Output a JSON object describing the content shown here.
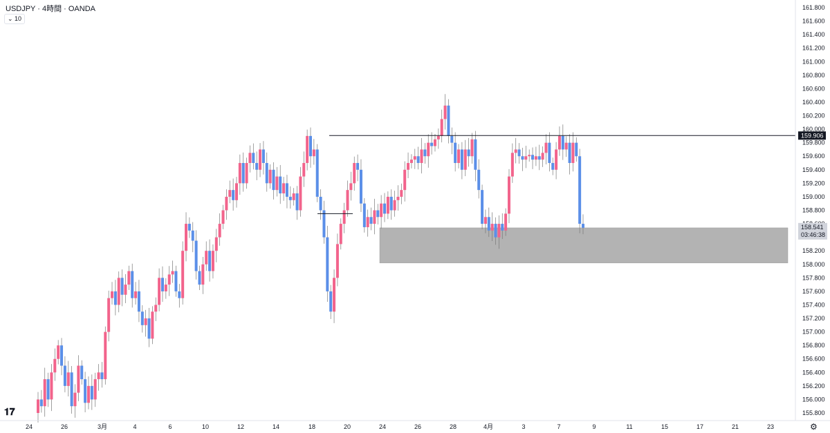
{
  "header": {
    "title": "USDJPY · 4時間 · OANDA",
    "indicator_value": "10"
  },
  "icons": {
    "logo": "tradingview-logo-icon",
    "settings": "gear-icon"
  },
  "colors": {
    "up": "#f2648c",
    "down": "#5b8fe8",
    "zone": "#b3b3b3",
    "line": "#131722"
  },
  "chart_data": {
    "type": "candlestick",
    "title": "USDJPY · 4時間 · OANDA",
    "ylim": [
      155.7,
      162.0
    ],
    "y_ticks": [
      "161.800",
      "161.600",
      "161.400",
      "161.200",
      "161.000",
      "160.800",
      "160.600",
      "160.400",
      "160.200",
      "160.000",
      "159.800",
      "159.600",
      "159.400",
      "159.200",
      "159.000",
      "158.800",
      "158.600",
      "158.400",
      "158.200",
      "158.000",
      "157.800",
      "157.600",
      "157.400",
      "157.200",
      "157.000",
      "156.800",
      "156.600",
      "156.400",
      "156.200",
      "156.000",
      "155.800"
    ],
    "x_labels": [
      "24",
      "26",
      "3月",
      "4",
      "6",
      "10",
      "12",
      "14",
      "18",
      "20",
      "24",
      "26",
      "28",
      "4月",
      "3",
      "7",
      "9",
      "11",
      "15",
      "17",
      "21",
      "23"
    ],
    "current_price": "159.906",
    "last_price": "158.541",
    "countdown": "03:46:38",
    "resistance_level": 159.906,
    "support_line": 158.75,
    "demand_zone": [
      158.02,
      158.54
    ],
    "path": [
      155.8,
      156.0,
      155.9,
      156.3,
      156.0,
      156.4,
      156.6,
      156.8,
      156.5,
      156.2,
      156.4,
      155.9,
      156.1,
      156.5,
      156.3,
      155.95,
      156.2,
      156.0,
      156.3,
      156.4,
      156.3,
      157.0,
      157.5,
      157.6,
      157.4,
      157.8,
      157.55,
      157.7,
      157.9,
      157.5,
      157.6,
      157.3,
      157.1,
      157.2,
      156.9,
      157.3,
      157.4,
      157.8,
      157.6,
      157.7,
      157.85,
      157.9,
      157.6,
      157.5,
      158.2,
      158.6,
      158.5,
      158.35,
      157.9,
      157.7,
      158.0,
      158.2,
      157.9,
      158.2,
      158.4,
      158.6,
      158.8,
      159.0,
      159.1,
      158.95,
      159.2,
      159.5,
      159.2,
      159.5,
      159.65,
      159.5,
      159.4,
      159.7,
      159.5,
      159.2,
      159.4,
      159.1,
      159.3,
      159.05,
      159.2,
      159.0,
      158.95,
      159.05,
      158.8,
      159.3,
      159.5,
      159.9,
      159.6,
      159.7,
      159.0,
      158.8,
      158.4,
      157.6,
      157.3,
      157.8,
      158.3,
      158.6,
      158.8,
      159.1,
      159.2,
      159.5,
      159.4,
      158.9,
      158.55,
      158.7,
      158.6,
      158.8,
      158.7,
      158.9,
      158.75,
      159.0,
      158.8,
      158.95,
      159.0,
      159.1,
      159.4,
      159.5,
      159.55,
      159.6,
      159.5,
      159.7,
      159.6,
      159.8,
      159.75,
      159.85,
      159.9,
      160.15,
      160.35,
      159.9,
      159.8,
      159.5,
      159.7,
      159.4,
      159.7,
      159.6,
      159.85,
      159.4,
      159.1,
      158.6,
      158.7,
      158.5,
      158.6,
      158.4,
      158.6,
      158.5,
      158.75,
      159.3,
      159.65,
      159.7,
      159.6,
      159.55,
      159.6,
      159.62,
      159.55,
      159.6,
      159.55,
      159.65,
      159.8,
      159.5,
      159.4,
      159.7,
      159.9,
      159.7,
      159.8,
      159.5,
      159.8,
      159.6,
      158.6,
      158.541
    ]
  }
}
